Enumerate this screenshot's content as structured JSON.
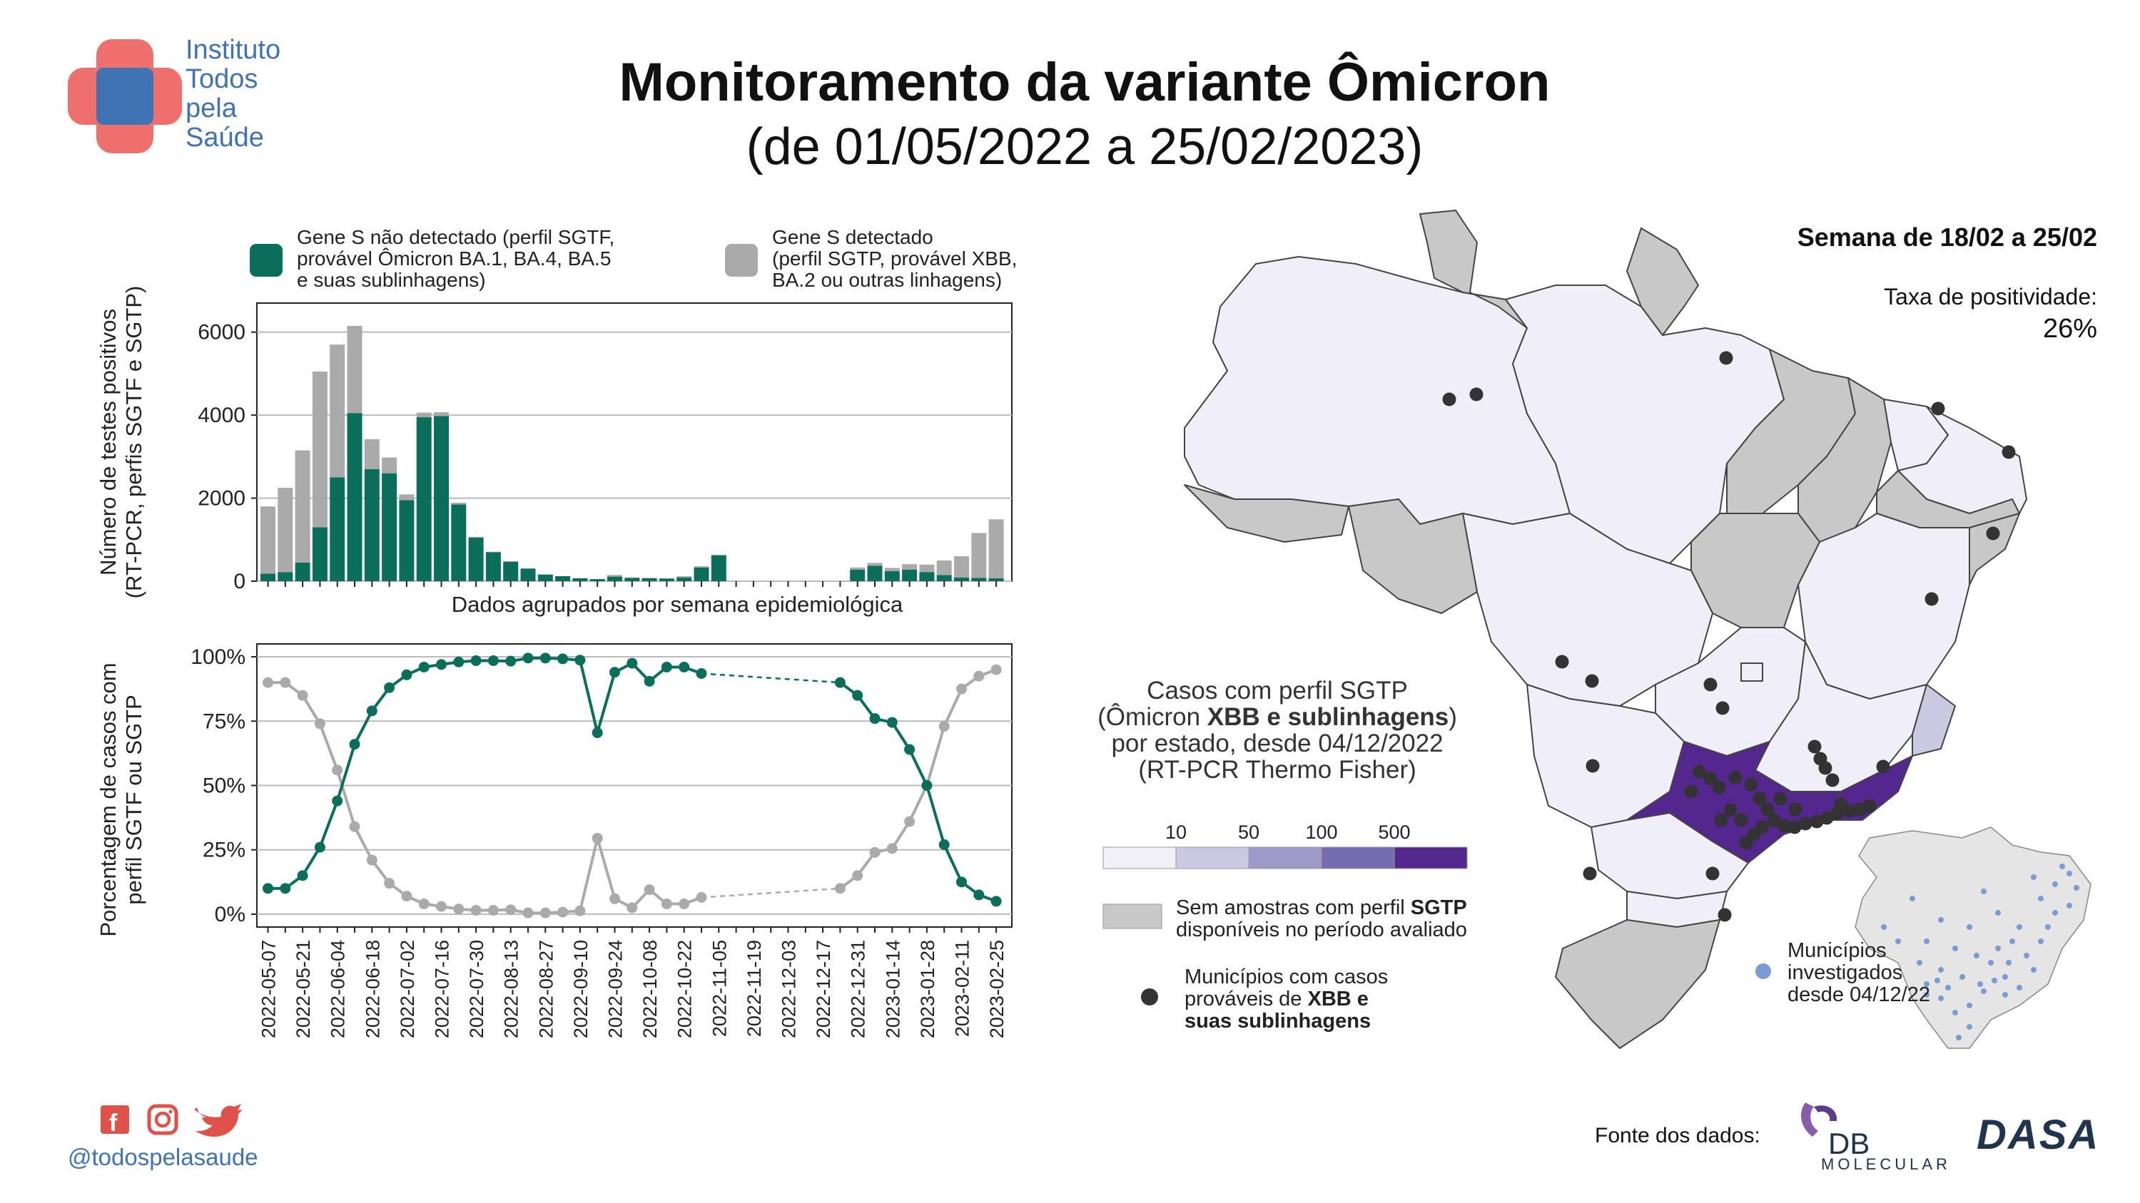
{
  "logo": {
    "lines": [
      "Instituto",
      "Todos",
      "pela",
      "Saúde"
    ]
  },
  "title": "Monitoramento da variante Ômicron",
  "subtitle": "(de 01/05/2022 a 25/02/2023)",
  "social_handle": "@todospelasaude",
  "source_label": "Fonte dos dados:",
  "source_logos": {
    "db": "DB",
    "molecular": "MOLECULAR",
    "dasa": "DASA"
  },
  "colors": {
    "sgtf": "#0b6e5a",
    "sgtp": "#aaaaaa",
    "brand_blue": "#3f73b4",
    "brand_red": "#ef6f6c",
    "state_fill": "#f0eff8",
    "state_gray": "#c8c8c8",
    "state_purple": "#54278f",
    "inset_dot": "#7a9bd3"
  },
  "icons": [
    "facebook-icon",
    "instagram-icon",
    "twitter-icon"
  ],
  "chart_data": [
    {
      "type": "bar",
      "stacked": true,
      "ylabel": "Número de testes positivos\n(RT-PCR, perfis SGTF e SGTP)",
      "xlabel": "Dados agrupados por semana epidemiológica",
      "ylim": [
        0,
        6700
      ],
      "yticks": [
        0,
        2000,
        4000,
        6000
      ],
      "grid": true,
      "legend": [
        {
          "name": "Gene S não detectado (perfil SGTF, provável Ômicron BA.1, BA.4, BA.5 e suas sublinhagens)",
          "lines": [
            "Gene S não detectado (perfil SGTF,",
            "provável Ômicron BA.1, BA.4, BA.5",
            "e suas sublinhagens)"
          ]
        },
        {
          "name": "Gene S detectado (perfil SGTP, provável XBB, BA.2 ou outras linhagens)",
          "lines": [
            "Gene S detectado",
            "(perfil SGTP, provável XBB,",
            "BA.2 ou outras linhagens)"
          ]
        }
      ],
      "categories": [
        "2022-05-07",
        "2022-05-14",
        "2022-05-21",
        "2022-05-28",
        "2022-06-04",
        "2022-06-11",
        "2022-06-18",
        "2022-06-25",
        "2022-07-02",
        "2022-07-09",
        "2022-07-16",
        "2022-07-23",
        "2022-07-30",
        "2022-08-06",
        "2022-08-13",
        "2022-08-20",
        "2022-08-27",
        "2022-09-03",
        "2022-09-10",
        "2022-09-17",
        "2022-09-24",
        "2022-10-01",
        "2022-10-08",
        "2022-10-15",
        "2022-10-22",
        "2022-10-29",
        "2022-11-05",
        "2022-11-12",
        "2022-11-19",
        "2022-11-26",
        "2022-12-03",
        "2022-12-10",
        "2022-12-17",
        "2022-12-24",
        "2022-12-31",
        "2023-01-07",
        "2023-01-14",
        "2023-01-21",
        "2023-01-28",
        "2023-02-04",
        "2023-02-11",
        "2023-02-18",
        "2023-02-25"
      ],
      "series": [
        {
          "name": "Gene S não detectado (perfil SGTF, provável Ômicron BA.1, BA.4, BA.5 e suas sublinhagens)",
          "values": [
            180,
            220,
            450,
            1300,
            2500,
            4050,
            2700,
            2600,
            1950,
            3950,
            3980,
            1850,
            1050,
            700,
            470,
            300,
            160,
            120,
            70,
            50,
            110,
            80,
            70,
            60,
            90,
            330,
            620,
            0,
            0,
            0,
            0,
            0,
            0,
            0,
            280,
            370,
            240,
            280,
            220,
            150,
            90,
            80,
            70
          ]
        },
        {
          "name": "Gene S detectado (perfil SGTP, provável XBB, BA.2 ou outras linhagens)",
          "values": [
            1620,
            2030,
            2700,
            3750,
            3200,
            2100,
            720,
            380,
            140,
            110,
            90,
            40,
            20,
            10,
            10,
            10,
            0,
            0,
            0,
            0,
            40,
            10,
            10,
            10,
            30,
            30,
            20,
            0,
            0,
            0,
            0,
            0,
            0,
            0,
            50,
            70,
            80,
            130,
            180,
            350,
            510,
            1080,
            1420
          ]
        }
      ]
    },
    {
      "type": "line",
      "ylabel": "Porcentagem de casos com\nperfil SGTF ou SGTP",
      "ylim": [
        -5,
        105
      ],
      "yticks": [
        "0%",
        "25%",
        "50%",
        "75%",
        "100%"
      ],
      "ytick_values": [
        0,
        25,
        50,
        75,
        100
      ],
      "grid": true,
      "x_tick_labels": [
        "2022-05-07",
        "2022-05-21",
        "2022-06-04",
        "2022-06-18",
        "2022-07-02",
        "2022-07-16",
        "2022-07-30",
        "2022-08-13",
        "2022-08-27",
        "2022-09-10",
        "2022-09-24",
        "2022-10-08",
        "2022-10-22",
        "2022-11-05",
        "2022-11-19",
        "2022-12-03",
        "2022-12-17",
        "2022-12-31",
        "2023-01-14",
        "2023-01-28",
        "2023-02-11",
        "2023-02-25"
      ],
      "x": [
        "2022-05-07",
        "2022-05-14",
        "2022-05-21",
        "2022-05-28",
        "2022-06-04",
        "2022-06-11",
        "2022-06-18",
        "2022-06-25",
        "2022-07-02",
        "2022-07-09",
        "2022-07-16",
        "2022-07-23",
        "2022-07-30",
        "2022-08-06",
        "2022-08-13",
        "2022-08-20",
        "2022-08-27",
        "2022-09-03",
        "2022-09-10",
        "2022-09-17",
        "2022-09-24",
        "2022-10-01",
        "2022-10-08",
        "2022-10-15",
        "2022-10-22",
        "2022-10-29",
        "2022-11-05",
        "2022-11-12",
        "2022-11-19",
        "2022-11-26",
        "2022-12-03",
        "2022-12-10",
        "2022-12-17",
        "2022-12-24",
        "2022-12-31",
        "2023-01-07",
        "2023-01-14",
        "2023-01-21",
        "2023-01-28",
        "2023-02-04",
        "2023-02-11",
        "2023-02-18",
        "2023-02-25"
      ],
      "gap_dashed_between": [
        "2022-10-29",
        "2022-12-24"
      ],
      "series": [
        {
          "values": [
            10,
            10,
            15,
            26,
            44,
            66,
            79,
            88,
            93,
            96,
            97,
            98,
            98.5,
            98.5,
            98.3,
            99.5,
            99.5,
            99.2,
            98.7,
            70.5,
            94,
            97.5,
            90.5,
            96,
            96,
            93.5,
            null,
            null,
            null,
            null,
            null,
            null,
            null,
            90,
            85,
            76,
            74.5,
            64,
            50,
            27,
            12.5,
            7.5,
            5
          ]
        },
        {
          "values": [
            90,
            90,
            85,
            74,
            56,
            34,
            21,
            12,
            7,
            4,
            3,
            2,
            1.5,
            1.5,
            1.7,
            0.5,
            0.5,
            0.8,
            1.3,
            29.5,
            6,
            2.5,
            9.5,
            4,
            4,
            6.5,
            null,
            null,
            null,
            null,
            null,
            null,
            null,
            10,
            15,
            24,
            25.5,
            36,
            50,
            73,
            87.5,
            92.5,
            95
          ]
        }
      ]
    }
  ],
  "map": {
    "week": "Semana de 18/02 a 25/02",
    "positivity_label": "Taxa de positividade:",
    "positivity_value": "26%",
    "legend_title_lines": [
      "Casos com perfil SGTP",
      "(Ômicron |XBB e sublinhagens|)",
      "por estado, desde 04/12/2022",
      "(RT-PCR Thermo Fisher)"
    ],
    "legend_title_bold": "XBB e sublinhagens",
    "scale_ticks": [
      "10",
      "50",
      "100",
      "500"
    ],
    "scale_colors": [
      "#f2f0f7",
      "#cbc9e2",
      "#9e9ac8",
      "#756bb1",
      "#54278f"
    ],
    "no_sample_text": [
      "Sem amostras com perfil ",
      "SGTP",
      "disponíveis no período avaliado"
    ],
    "municipalities_text": [
      "Municípios com casos",
      "prováveis de ",
      "XBB e",
      "suas sublinhagens"
    ],
    "inset_legend": [
      "Municípios",
      "investigados",
      "desde 04/12/22"
    ]
  }
}
